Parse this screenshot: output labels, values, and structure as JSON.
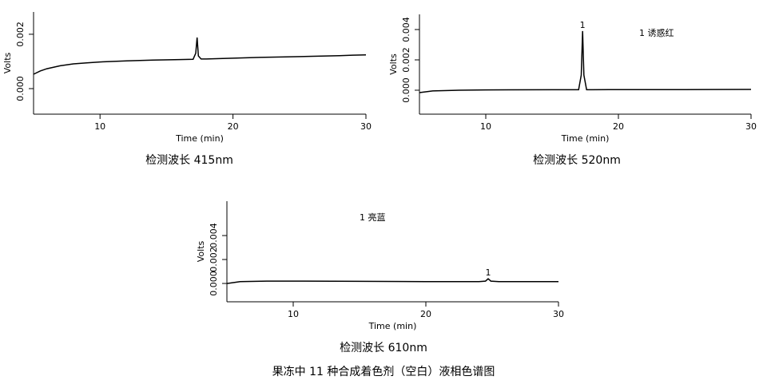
{
  "chart_data": [
    {
      "type": "line",
      "title": "检测波长 415nm",
      "x_label": "Time (min)",
      "y_label": "Volts",
      "xlim": [
        5,
        30
      ],
      "xticks": [
        10,
        20,
        30
      ],
      "ylim": [
        -0.00094,
        0.00282
      ],
      "yticks": [
        {
          "value": 0,
          "label": "0.000"
        },
        {
          "value": 0.002,
          "label": "0.002"
        }
      ],
      "series": [
        {
          "color": "#000000",
          "x": [
            5,
            5.5,
            6,
            7,
            8,
            9,
            10,
            12,
            14,
            16,
            17,
            17.2,
            17.3,
            17.4,
            17.6,
            18,
            20,
            22,
            24,
            26,
            28,
            29,
            30
          ],
          "values": [
            0.00053,
            0.00065,
            0.00073,
            0.00084,
            0.00091,
            0.00095,
            0.00098,
            0.00102,
            0.00105,
            0.00107,
            0.00108,
            0.0013,
            0.00188,
            0.0012,
            0.00109,
            0.00109,
            0.00112,
            0.00115,
            0.00117,
            0.00119,
            0.00121,
            0.00123,
            0.00124
          ]
        }
      ]
    },
    {
      "type": "line",
      "title": "检测波长 520nm",
      "x_label": "Time (min)",
      "y_label": "Volts",
      "xlim": [
        5,
        30
      ],
      "xticks": [
        10,
        20,
        30
      ],
      "ylim": [
        -0.00158,
        0.005
      ],
      "yticks": [
        {
          "value": 0,
          "label": "0.000"
        },
        {
          "value": 0.002,
          "label": "0.002"
        },
        {
          "value": 0.004,
          "label": "0.004"
        }
      ],
      "annotation": "1 诱惑红",
      "peak_label": "1",
      "series": [
        {
          "color": "#000000",
          "x": [
            5,
            6,
            8,
            10,
            15,
            17,
            17.2,
            17.3,
            17.4,
            17.6,
            18,
            20,
            25,
            30
          ],
          "values": [
            -0.00016,
            -5e-05,
            0,
            2e-05,
            3e-05,
            3e-05,
            0.001,
            0.0039,
            0.001,
            3e-05,
            3e-05,
            4e-05,
            4e-05,
            5e-05
          ]
        }
      ]
    },
    {
      "type": "line",
      "title": "检测波长 610nm",
      "x_label": "Time (min)",
      "y_label": "Volts",
      "xlim": [
        5,
        30
      ],
      "xticks": [
        10,
        20,
        30
      ],
      "ylim": [
        -0.00153,
        0.00687
      ],
      "yticks": [
        {
          "value": 0,
          "label": "0.000"
        },
        {
          "value": 0.002,
          "label": "0.002"
        },
        {
          "value": 0.004,
          "label": "0.004"
        }
      ],
      "annotation": "1 亮蓝",
      "peak_label": "1",
      "series": [
        {
          "color": "#000000",
          "x": [
            5,
            6,
            8,
            10,
            15,
            20,
            24,
            24.5,
            24.7,
            24.9,
            25.5,
            30
          ],
          "values": [
            0,
            0.00015,
            0.0002,
            0.0002,
            0.00018,
            0.00015,
            0.00015,
            0.0002,
            0.0004,
            0.0002,
            0.00015,
            0.00015
          ]
        }
      ]
    }
  ],
  "caption": "果冻中 11 种合成着色剂（空白）液相色谱图"
}
